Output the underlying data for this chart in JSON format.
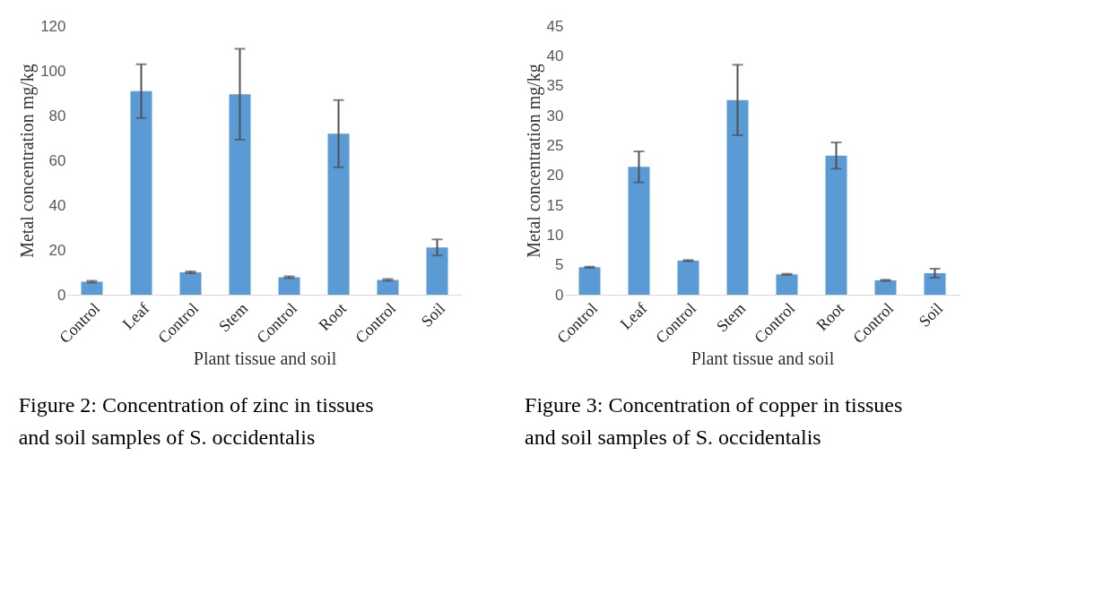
{
  "chart_data": [
    {
      "type": "bar",
      "xlabel": "Plant tissue and soil",
      "ylabel": "Metal concentration mg/kg",
      "categories": [
        "Control",
        "Leaf",
        "Control",
        "Stem",
        "Control",
        "Root",
        "Control",
        "Soil"
      ],
      "values": [
        5.8,
        90.9,
        10.0,
        89.5,
        7.8,
        71.9,
        6.6,
        21.1
      ],
      "errors": [
        0.4,
        12,
        0.4,
        20.3,
        0.4,
        15,
        0.4,
        3.6
      ],
      "color": "#5b9bd5",
      "ylim": [
        0,
        120
      ],
      "yticks": [
        0,
        20,
        40,
        60,
        80,
        100,
        120
      ],
      "grid": false,
      "annotations": [
        "Figure 2: Concentration of zinc in tissues and soil samples of S. occidentalis"
      ]
    },
    {
      "type": "bar",
      "xlabel": "Plant tissue and soil",
      "ylabel": "Metal concentration mg/kg",
      "categories": [
        "Control",
        "Leaf",
        "Control",
        "Stem",
        "Control",
        "Root",
        "Control",
        "Soil"
      ],
      "values": [
        4.6,
        21.4,
        5.7,
        32.6,
        3.4,
        23.3,
        2.4,
        3.6
      ],
      "errors": [
        0.1,
        2.6,
        0.1,
        5.9,
        0.1,
        2.2,
        0.1,
        0.75
      ],
      "color": "#5b9bd5",
      "ylim": [
        0,
        45
      ],
      "yticks": [
        0,
        5,
        10,
        15,
        20,
        25,
        30,
        35,
        40,
        45
      ],
      "grid": false,
      "annotations": [
        "Figure 3: Concentration of copper in tissues and soil samples of S. occidentalis"
      ]
    }
  ]
}
